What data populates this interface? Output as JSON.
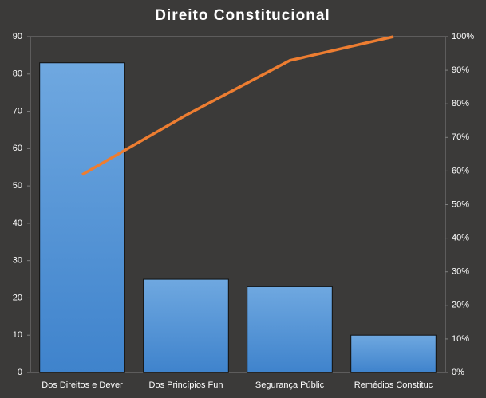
{
  "chart_data": {
    "type": "pareto",
    "title": "Direito  Constitucional",
    "categories": [
      "Dos Direitos e Dever",
      "Dos Princípios Fun",
      "Segurança Públic",
      "Remédios Constituc"
    ],
    "series": [
      {
        "type": "bar",
        "color": "#4a90d9",
        "values": [
          83,
          25,
          23,
          10
        ]
      },
      {
        "type": "line",
        "axis": "y2",
        "color": "#ed7d31",
        "values": [
          58.9,
          76.6,
          92.9,
          100
        ]
      }
    ],
    "ylim": [
      0,
      90
    ],
    "yticks": [
      0,
      10,
      20,
      30,
      40,
      50,
      60,
      70,
      80,
      90
    ],
    "y2lim": [
      0,
      100
    ],
    "y2ticks": [
      {
        "value": 0,
        "label": "0%"
      },
      {
        "value": 10,
        "label": "10%"
      },
      {
        "value": 20,
        "label": "20%"
      },
      {
        "value": 30,
        "label": "30%"
      },
      {
        "value": 40,
        "label": "40%"
      },
      {
        "value": 50,
        "label": "50%"
      },
      {
        "value": 60,
        "label": "60%"
      },
      {
        "value": 70,
        "label": "70%"
      },
      {
        "value": 80,
        "label": "80%"
      },
      {
        "value": 90,
        "label": "90%"
      },
      {
        "value": 100,
        "label": "100%"
      }
    ]
  }
}
